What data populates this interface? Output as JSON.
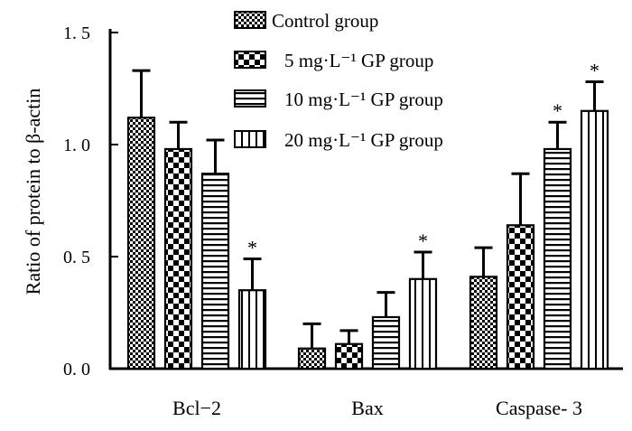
{
  "chart_data": {
    "type": "bar",
    "title": "",
    "xlabel": "",
    "ylabel": "Ratio of protein to β-actin",
    "ylim": [
      0,
      1.5
    ],
    "yticks": [
      "0. 0",
      "0. 5",
      "1. 0",
      "1. 5"
    ],
    "categories": [
      "Bcl−2",
      "Bax",
      "Caspase- 3"
    ],
    "legend_position": "top-center",
    "grid": false,
    "series": [
      {
        "name": "Control group",
        "pattern": "checker-fine",
        "values": [
          1.12,
          0.09,
          0.41
        ],
        "errors": [
          0.21,
          0.11,
          0.13
        ],
        "significant": [
          false,
          false,
          false
        ]
      },
      {
        "name": "5 mg·L⁻¹ GP group",
        "pattern": "checker-coarse",
        "values": [
          0.98,
          0.11,
          0.64
        ],
        "errors": [
          0.12,
          0.06,
          0.23
        ],
        "significant": [
          false,
          false,
          false
        ]
      },
      {
        "name": "10 mg·L⁻¹ GP group",
        "pattern": "horizontal-lines",
        "values": [
          0.87,
          0.23,
          0.98
        ],
        "errors": [
          0.15,
          0.11,
          0.12
        ],
        "significant": [
          false,
          false,
          true
        ]
      },
      {
        "name": "20 mg·L⁻¹ GP group",
        "pattern": "vertical-lines",
        "values": [
          0.35,
          0.4,
          1.15
        ],
        "errors": [
          0.14,
          0.12,
          0.13
        ],
        "significant": [
          true,
          true,
          true
        ]
      }
    ],
    "significance_marker": "*"
  }
}
